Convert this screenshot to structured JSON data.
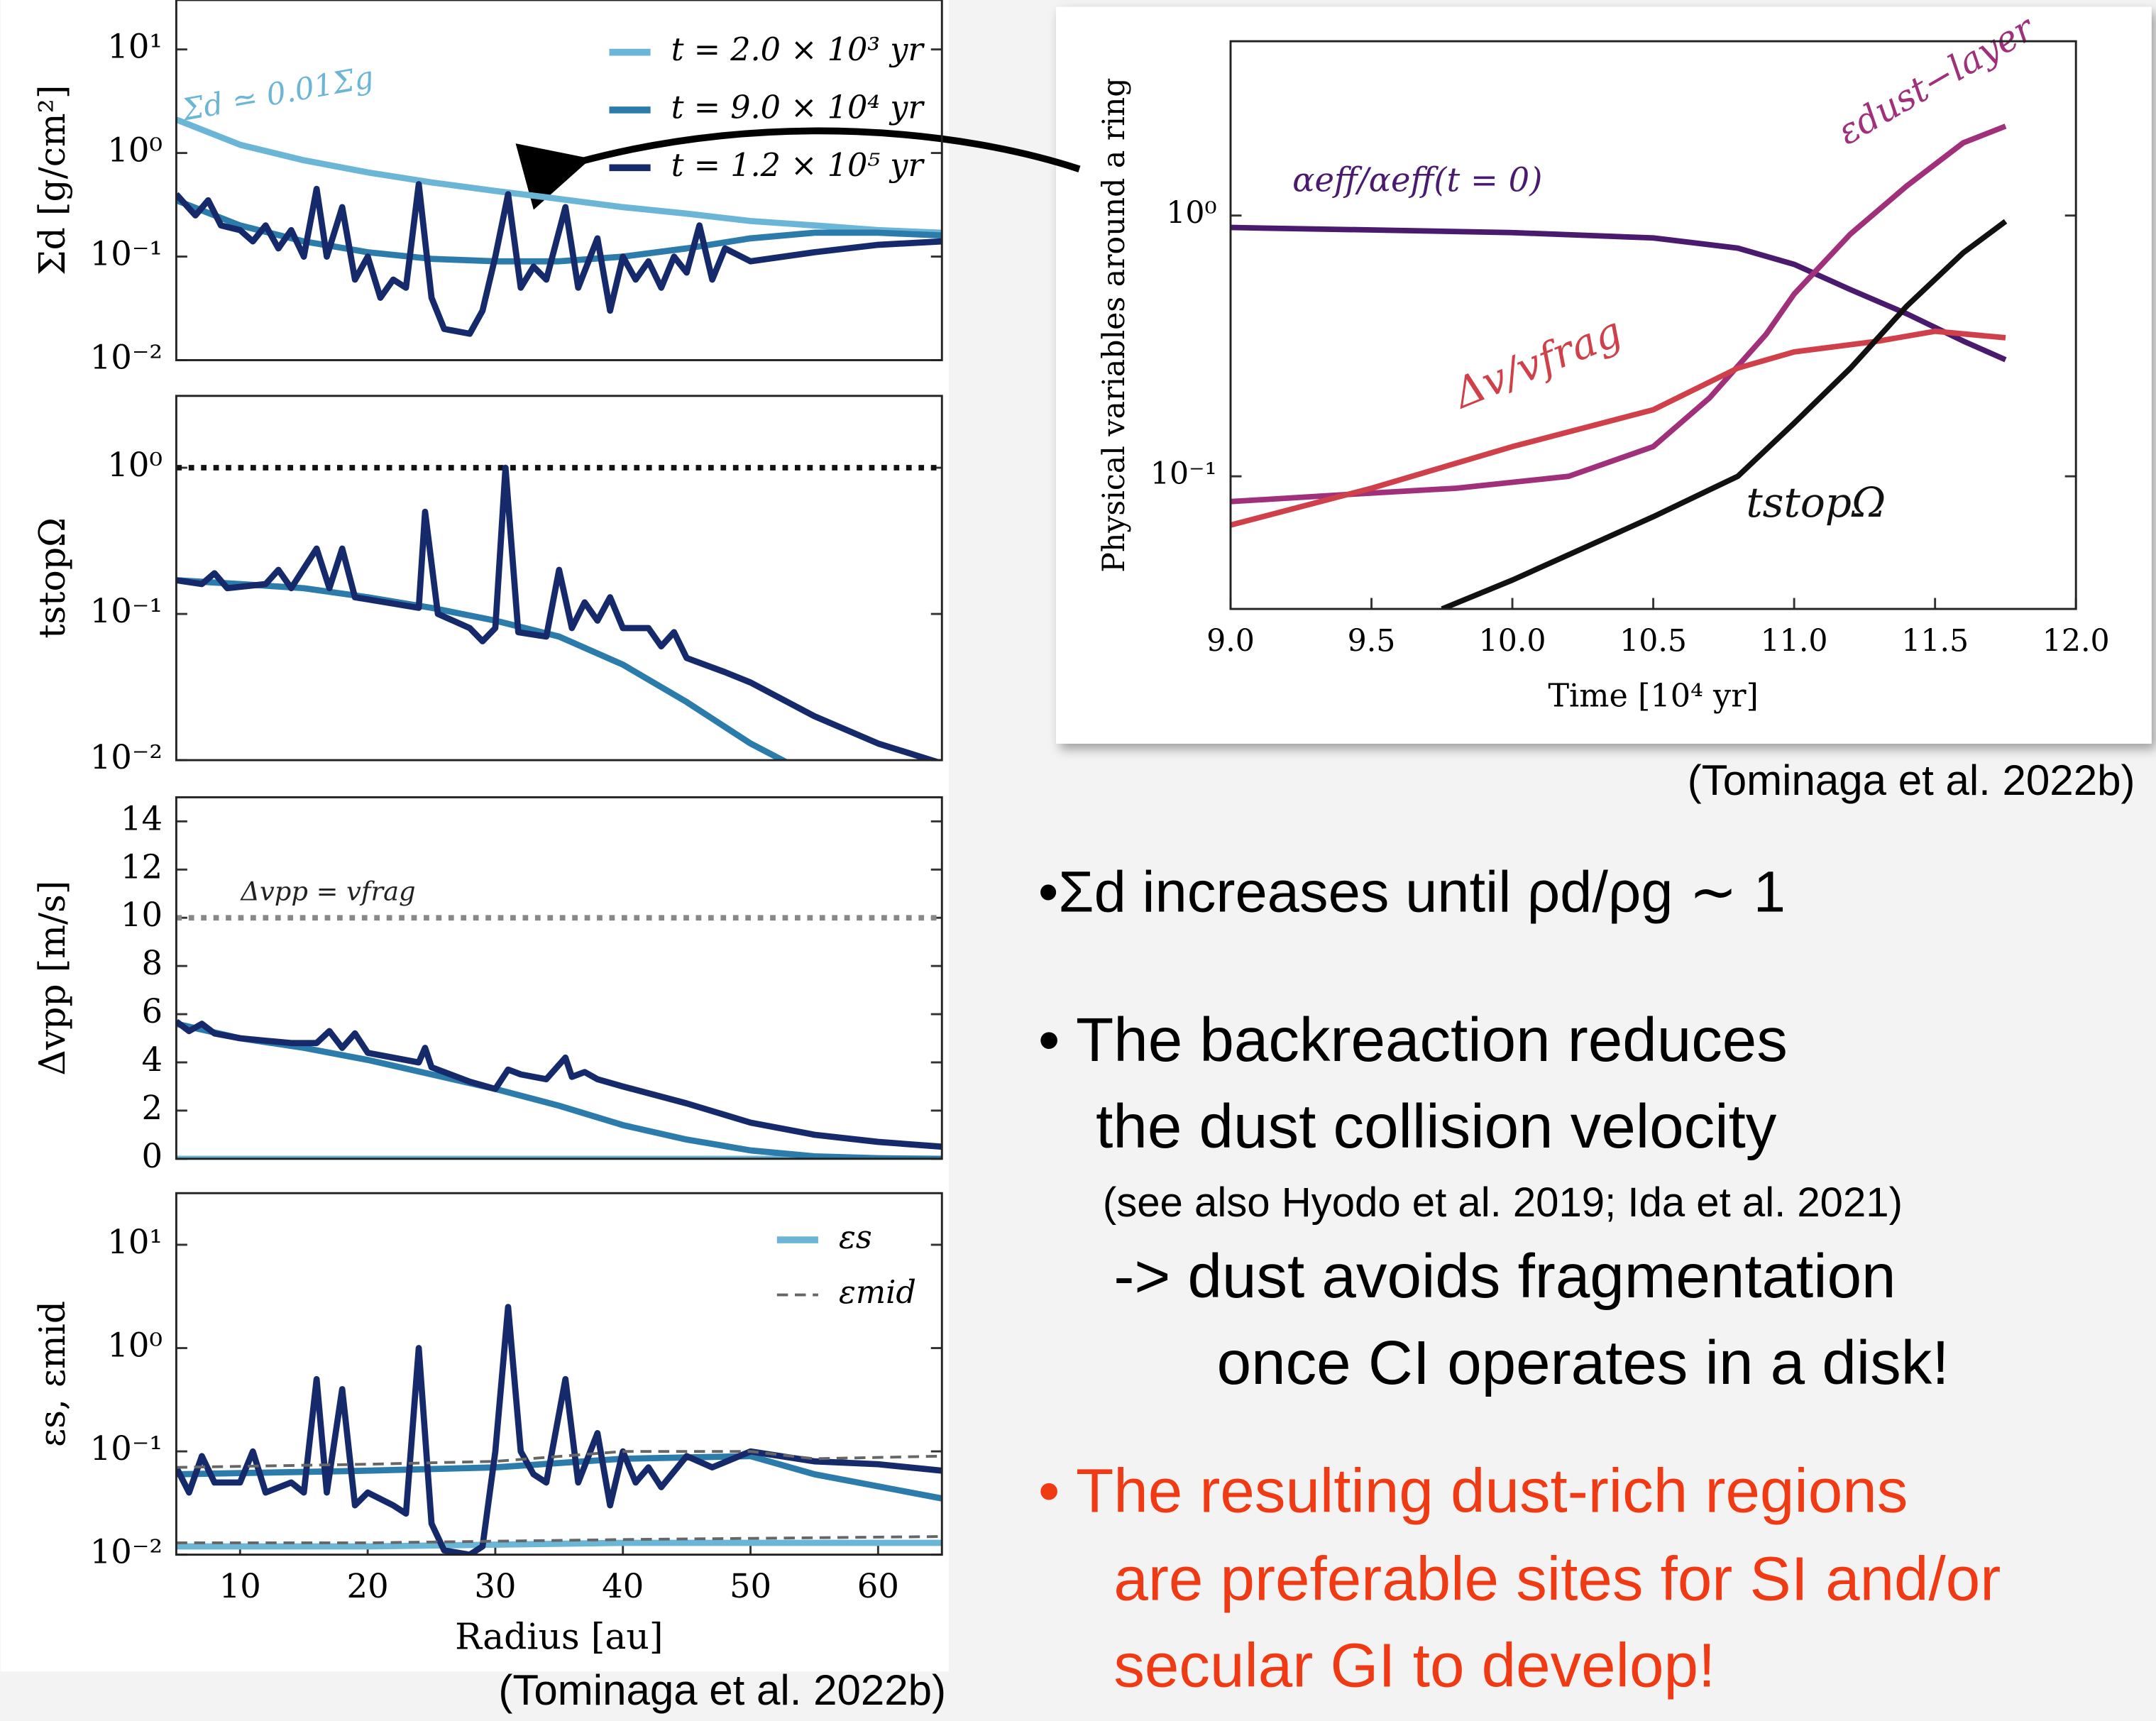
{
  "chart_data": [
    {
      "type": "line",
      "ylabel": "Σd [g/cm²]",
      "ylog": true,
      "xlim": [
        5,
        65
      ],
      "ylim": [
        0.01,
        30
      ],
      "yticks": [
        {
          "value": 0.01,
          "label": "10⁻²"
        },
        {
          "value": 0.1,
          "label": "10⁻¹"
        },
        {
          "value": 1,
          "label": "10⁰"
        },
        {
          "value": 10,
          "label": "10¹"
        }
      ],
      "legend": "upper right",
      "annotation": "Σd ≃ 0.01Σg",
      "series": [
        {
          "name": "t = 2.0 × 10³ yr",
          "color": "#6bb6d6",
          "x": [
            5,
            10,
            15,
            20,
            25,
            30,
            35,
            40,
            45,
            50,
            55,
            60,
            65
          ],
          "values": [
            2.1,
            1.2,
            0.85,
            0.65,
            0.52,
            0.43,
            0.36,
            0.3,
            0.26,
            0.22,
            0.2,
            0.18,
            0.17
          ]
        },
        {
          "name": "t = 9.0 × 10⁴ yr",
          "color": "#2b7bab",
          "x": [
            5,
            10,
            15,
            20,
            25,
            30,
            35,
            40,
            45,
            50,
            55,
            60,
            65
          ],
          "values": [
            0.35,
            0.2,
            0.14,
            0.11,
            0.095,
            0.09,
            0.09,
            0.1,
            0.12,
            0.15,
            0.17,
            0.17,
            0.16
          ]
        },
        {
          "name": "t = 1.2 × 10⁵ yr",
          "color": "#162a6b",
          "x": [
            5,
            6.5,
            7.5,
            8.5,
            10,
            11,
            12,
            13,
            14,
            15,
            16,
            16.8,
            18,
            19,
            20,
            21,
            22,
            23,
            24,
            25,
            26,
            28,
            29,
            30,
            31,
            32,
            33,
            34,
            35.5,
            36.5,
            38,
            39,
            40,
            41,
            42,
            43,
            44,
            45,
            46,
            47,
            48,
            50,
            55,
            60,
            65
          ],
          "values": [
            0.4,
            0.25,
            0.35,
            0.2,
            0.18,
            0.14,
            0.2,
            0.12,
            0.18,
            0.1,
            0.45,
            0.1,
            0.3,
            0.06,
            0.1,
            0.04,
            0.06,
            0.05,
            0.5,
            0.04,
            0.02,
            0.018,
            0.03,
            0.1,
            0.4,
            0.05,
            0.08,
            0.06,
            0.3,
            0.05,
            0.15,
            0.03,
            0.1,
            0.06,
            0.09,
            0.05,
            0.1,
            0.07,
            0.2,
            0.06,
            0.12,
            0.09,
            0.11,
            0.13,
            0.14
          ]
        }
      ]
    },
    {
      "type": "line",
      "ylabel": "tstopΩ",
      "ylog": true,
      "xlim": [
        5,
        65
      ],
      "ylim": [
        0.01,
        3.1
      ],
      "yticks": [
        {
          "value": 0.01,
          "label": "10⁻²"
        },
        {
          "value": 0.1,
          "label": "10⁻¹"
        },
        {
          "value": 1,
          "label": "10⁰"
        }
      ],
      "hline": {
        "value": 1,
        "color": "#111111"
      },
      "series": [
        {
          "color": "#2b7bab",
          "x": [
            5,
            10,
            15,
            20,
            25,
            30,
            35,
            40,
            45,
            50,
            53
          ],
          "values": [
            0.17,
            0.16,
            0.15,
            0.13,
            0.11,
            0.09,
            0.07,
            0.045,
            0.025,
            0.013,
            0.0095
          ]
        },
        {
          "color": "#162a6b",
          "x": [
            5,
            7,
            8,
            9,
            12,
            13,
            14,
            16,
            17,
            18,
            19,
            24,
            24.5,
            25.5,
            28,
            29,
            30,
            30.8,
            31.8,
            34,
            35,
            36,
            37,
            38,
            39,
            40,
            42,
            43,
            44,
            45,
            48,
            50,
            55,
            60,
            65
          ],
          "values": [
            0.17,
            0.16,
            0.19,
            0.15,
            0.16,
            0.2,
            0.15,
            0.28,
            0.15,
            0.28,
            0.13,
            0.11,
            0.5,
            0.1,
            0.08,
            0.065,
            0.08,
            1.0,
            0.075,
            0.07,
            0.2,
            0.08,
            0.12,
            0.09,
            0.13,
            0.08,
            0.08,
            0.06,
            0.075,
            0.05,
            0.04,
            0.034,
            0.02,
            0.013,
            0.0095
          ]
        }
      ]
    },
    {
      "type": "line",
      "ylabel": "Δvpp [m/s]",
      "ylog": false,
      "xlim": [
        5,
        65
      ],
      "ylim": [
        0,
        15
      ],
      "yticks": [
        0,
        2,
        4,
        6,
        8,
        10,
        12,
        14
      ],
      "hline": {
        "value": 10,
        "color": "#888888"
      },
      "annotation": "Δvpp = vfrag",
      "series": [
        {
          "color": "#6bb6d6",
          "x": [
            5,
            65
          ],
          "values": [
            0,
            0
          ]
        },
        {
          "color": "#2b7bab",
          "x": [
            5,
            10,
            15,
            20,
            25,
            30,
            35,
            40,
            45,
            50,
            55,
            60,
            65
          ],
          "values": [
            5.6,
            5,
            4.6,
            4.1,
            3.5,
            2.9,
            2.2,
            1.4,
            0.8,
            0.35,
            0.1,
            0.02,
            0
          ]
        },
        {
          "color": "#162a6b",
          "x": [
            5,
            6,
            7,
            8,
            10,
            12,
            14,
            16,
            17,
            18,
            19,
            20,
            24,
            24.5,
            25,
            28,
            30,
            31,
            32,
            34,
            35.5,
            36,
            37,
            38,
            40,
            45,
            50,
            55,
            60,
            65
          ],
          "values": [
            5.7,
            5.3,
            5.6,
            5.2,
            5,
            4.9,
            4.8,
            4.8,
            5.3,
            4.6,
            5.2,
            4.4,
            4,
            4.6,
            3.8,
            3.2,
            2.9,
            3.7,
            3.5,
            3.3,
            4.2,
            3.4,
            3.6,
            3.3,
            3,
            2.3,
            1.5,
            1,
            0.7,
            0.5
          ]
        }
      ]
    },
    {
      "type": "line",
      "ylabel": "εs, εmid",
      "xlabel": "Radius [au]",
      "ylog": true,
      "xlim": [
        5,
        65
      ],
      "ylim": [
        0.01,
        31.6
      ],
      "yticks": [
        {
          "value": 0.01,
          "label": "10⁻²"
        },
        {
          "value": 0.1,
          "label": "10⁻¹"
        },
        {
          "value": 1,
          "label": "10⁰"
        },
        {
          "value": 10,
          "label": "10¹"
        }
      ],
      "xticks": [
        10,
        20,
        30,
        40,
        50,
        60
      ],
      "legend": "upper right",
      "series": [
        {
          "name": "εs",
          "color": "#6bb6d6",
          "x": [
            5,
            20,
            40,
            65
          ],
          "values": [
            0.012,
            0.012,
            0.013,
            0.013
          ]
        },
        {
          "color": "#2b7bab",
          "x": [
            5,
            20,
            30,
            40,
            50,
            55,
            65
          ],
          "values": [
            0.06,
            0.065,
            0.07,
            0.085,
            0.09,
            0.06,
            0.035
          ]
        },
        {
          "color": "#162a6b",
          "x": [
            5,
            6,
            7,
            8,
            10,
            11,
            12,
            14,
            15,
            16,
            16.8,
            18,
            19,
            20,
            22,
            23,
            24,
            25,
            26,
            28,
            29,
            30,
            31,
            32,
            33,
            34,
            35.5,
            36.5,
            38,
            39,
            40,
            41,
            42,
            43,
            45,
            47,
            50,
            55,
            60,
            65
          ],
          "values": [
            0.07,
            0.04,
            0.09,
            0.05,
            0.05,
            0.1,
            0.04,
            0.05,
            0.04,
            0.5,
            0.04,
            0.4,
            0.03,
            0.04,
            0.03,
            0.025,
            1.0,
            0.02,
            0.011,
            0.01,
            0.012,
            0.1,
            2.5,
            0.1,
            0.06,
            0.05,
            0.5,
            0.05,
            0.15,
            0.03,
            0.1,
            0.05,
            0.07,
            0.045,
            0.09,
            0.07,
            0.1,
            0.08,
            0.075,
            0.065
          ]
        },
        {
          "name": "εmid",
          "color": "#666666",
          "dash": true,
          "x": [
            5,
            20,
            30,
            40,
            50,
            55,
            65
          ],
          "values": [
            0.07,
            0.075,
            0.08,
            0.1,
            0.1,
            0.085,
            0.09
          ]
        },
        {
          "color": "#666666",
          "dash": true,
          "x": [
            5,
            20,
            40,
            65
          ],
          "values": [
            0.013,
            0.013,
            0.014,
            0.015
          ]
        }
      ]
    },
    {
      "type": "line",
      "ylabel": "Physical variables around a ring",
      "xlabel": "Time [10⁴ yr]",
      "ylog": true,
      "xlim": [
        9,
        12
      ],
      "ylim": [
        0.031,
        4.66
      ],
      "xticks": [
        {
          "value": 9,
          "label": "9.0"
        },
        {
          "value": 9.5,
          "label": "9.5"
        },
        {
          "value": 10,
          "label": "10.0"
        },
        {
          "value": 10.5,
          "label": "10.5"
        },
        {
          "value": 11,
          "label": "11.0"
        },
        {
          "value": 11.5,
          "label": "11.5"
        },
        {
          "value": 12,
          "label": "12.0"
        }
      ],
      "yticks": [
        {
          "value": 0.1,
          "label": "10⁻¹"
        },
        {
          "value": 1,
          "label": "10⁰"
        }
      ],
      "series": [
        {
          "name": "αeff/αeff(t = 0)",
          "color": "#4a1a6e",
          "x": [
            9,
            9.5,
            10,
            10.5,
            10.8,
            11,
            11.2,
            11.4,
            11.6,
            11.75
          ],
          "values": [
            0.9,
            0.88,
            0.86,
            0.82,
            0.75,
            0.65,
            0.52,
            0.42,
            0.33,
            0.28
          ]
        },
        {
          "name": "εdust−layer",
          "color": "#a0307a",
          "x": [
            9,
            9.4,
            9.8,
            10.2,
            10.5,
            10.7,
            10.9,
            11,
            11.2,
            11.4,
            11.6,
            11.75
          ],
          "values": [
            0.08,
            0.085,
            0.09,
            0.1,
            0.13,
            0.2,
            0.35,
            0.5,
            0.85,
            1.3,
            1.9,
            2.2
          ]
        },
        {
          "name": "Δv/vfrag",
          "color": "#d0404a",
          "x": [
            9,
            9.5,
            10,
            10.5,
            10.8,
            11,
            11.3,
            11.5,
            11.75
          ],
          "values": [
            0.065,
            0.09,
            0.13,
            0.18,
            0.26,
            0.3,
            0.33,
            0.36,
            0.34
          ]
        },
        {
          "name": "tstopΩ",
          "color": "#111111",
          "x": [
            9.75,
            10,
            10.5,
            10.8,
            11,
            11.2,
            11.4,
            11.6,
            11.75
          ],
          "values": [
            0.031,
            0.04,
            0.07,
            0.1,
            0.16,
            0.26,
            0.45,
            0.72,
            0.95
          ]
        }
      ]
    }
  ],
  "captions": [
    "(Tominaga et al. 2022b)",
    "(Tominaga et al. 2022b)"
  ],
  "bullets": [
    [
      "•Σd increases until ρd/ρg ∼ 1"
    ],
    [
      "• The backreaction reduces",
      "the dust collision velocity",
      "(see also Hyodo et al. 2019; Ida et al. 2021)",
      "-> dust avoids fragmentation",
      "once CI operates in a disk!"
    ],
    [
      "• The resulting dust-rich regions",
      "are preferable sites for SI and/or",
      "secular GI to develop!"
    ]
  ]
}
